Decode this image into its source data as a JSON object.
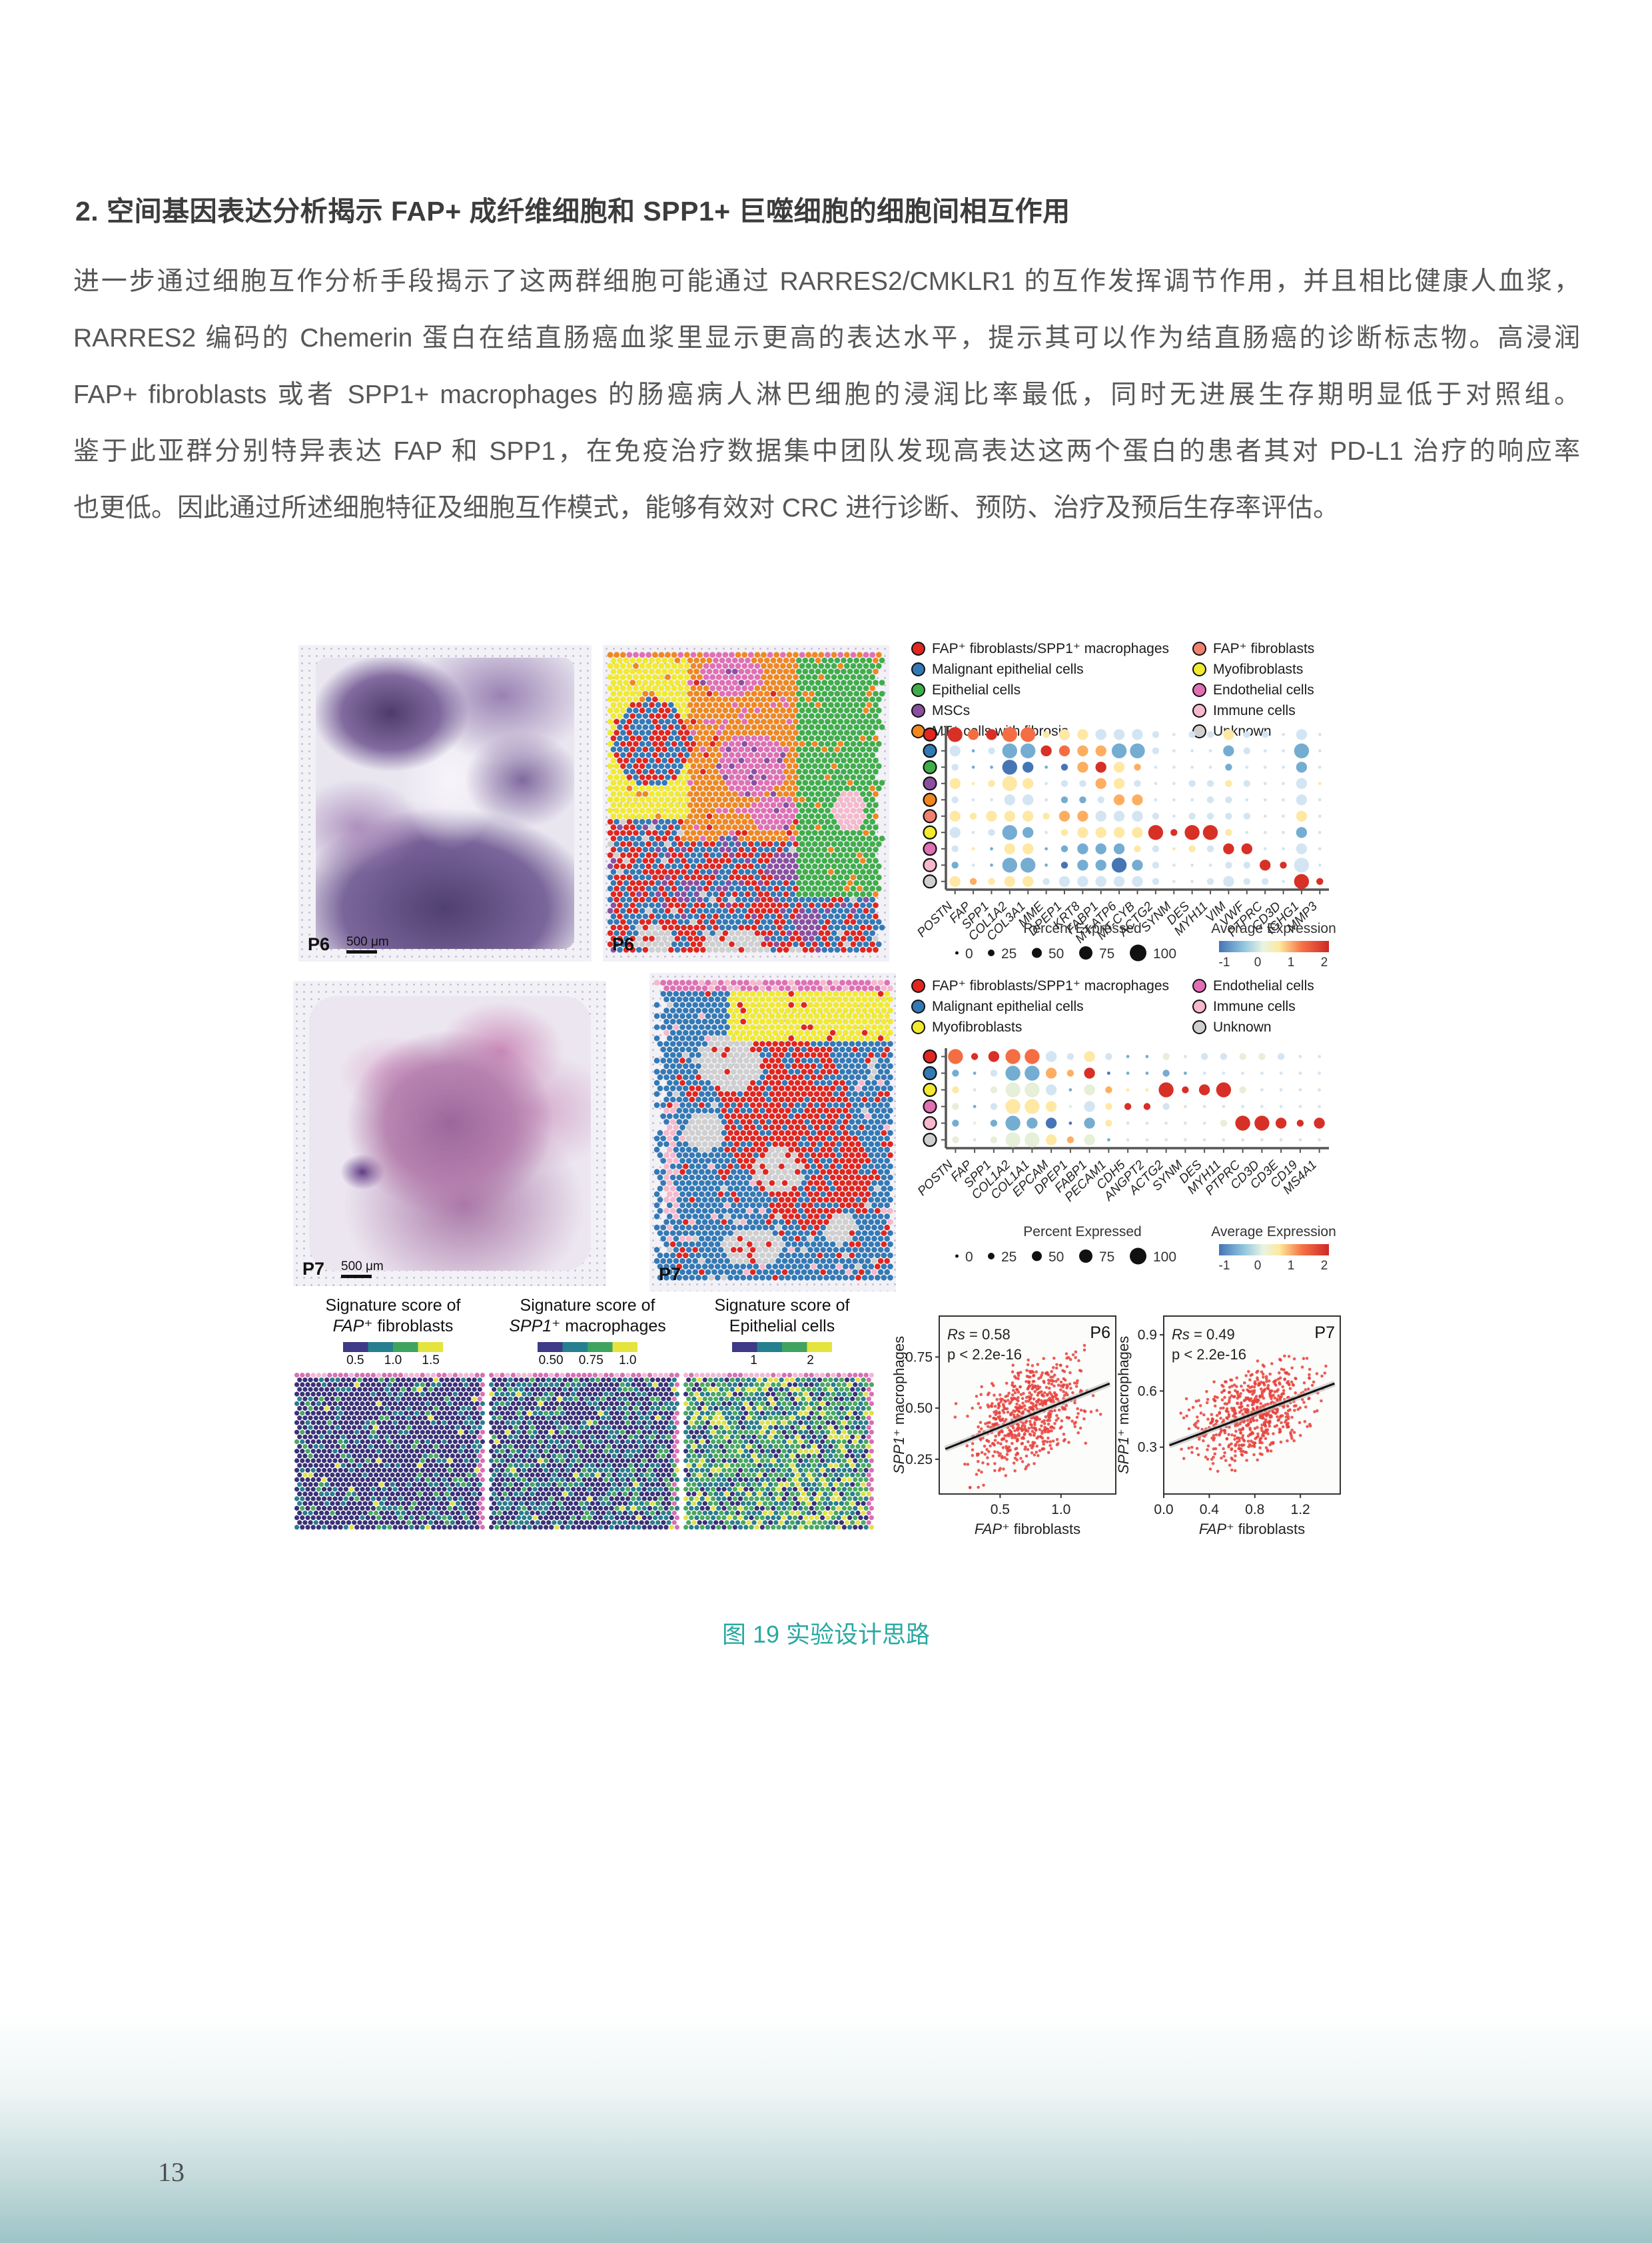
{
  "page": {
    "heading": "2. 空间基因表达分析揭示 FAP+ 成纤维细胞和 SPP1+ 巨噬细胞的细胞间相互作用",
    "paragraph_lines": [
      "进一步通过细胞互作分析手段揭示了这两群细胞可能通过 RARRES2/CMKLR1 的互作发挥调节作用，并且相比健康人血浆，",
      "RARRES2 编码的 Chemerin 蛋白在结直肠癌血浆里显示更高的表达水平，提示其可以作为结直肠癌的诊断标志物。高浸润",
      "FAP+ fibroblasts 或者 SPP1+ macrophages 的肠癌病人淋巴细胞的浸润比率最低，同时无进展生存期明显低于对照组。",
      "鉴于此亚群分别特异表达 FAP 和 SPP1，在免疫治疗数据集中团队发现高表达这两个蛋白的患者其对 PD-L1 治疗的响应率",
      "也更低。因此通过所述细胞特征及细胞互作模式，能够有效对 CRC 进行诊断、预防、治疗及预后生存率评估。"
    ],
    "caption": "图 19 实验设计思路",
    "caption_color": "#2aa8a2",
    "page_number": "13"
  },
  "figure": {
    "p6_label": "P6",
    "p7_label": "P7",
    "scale_label": "500 μm",
    "cell_colors": {
      "red": "#e0261f",
      "blue": "#3379b5",
      "green": "#3fae4a",
      "purple": "#8a4fa0",
      "orange": "#f0871f",
      "salmon": "#f08070",
      "yellow": "#f2ea2e",
      "magenta": "#e06fb4",
      "lightpink": "#f6b8ca",
      "gray": "#cfcfcf"
    },
    "expr_colors": {
      "R": "#d73027",
      "r": "#f46d43",
      "o": "#fdae61",
      "y": "#fee8a4",
      "e": "#e6efd8",
      "c": "#d3e5f2",
      "b": "#74add1",
      "B": "#4575b4"
    },
    "dot_sizes": {
      "1": 2.4,
      "2": 5.2,
      "3": 8.2,
      "4": 11.2
    },
    "legend_p6": {
      "left": [
        {
          "color": "red",
          "label": "FAP⁺ fibroblasts/SPP1⁺ macrophages"
        },
        {
          "color": "blue",
          "label": "Malignant epithelial cells"
        },
        {
          "color": "green",
          "label": "Epithelial cells"
        },
        {
          "color": "purple",
          "label": "MSCs"
        },
        {
          "color": "orange",
          "label": "MT⁺ cells with fibrosis"
        }
      ],
      "right": [
        {
          "color": "salmon",
          "label": "FAP⁺ fibroblasts"
        },
        {
          "color": "yellow",
          "label": "Myofibroblasts"
        },
        {
          "color": "magenta",
          "label": "Endothelial cells"
        },
        {
          "color": "lightpink",
          "label": "Immune cells"
        },
        {
          "color": "gray",
          "label": "Unknown"
        }
      ]
    },
    "legend_p7": {
      "left": [
        {
          "color": "red",
          "label": "FAP⁺ fibroblasts/SPP1⁺ macrophages"
        },
        {
          "color": "blue",
          "label": "Malignant epithelial cells"
        },
        {
          "color": "yellow",
          "label": "Myofibroblasts"
        }
      ],
      "right": [
        {
          "color": "magenta",
          "label": "Endothelial cells"
        },
        {
          "color": "lightpink",
          "label": "Immune cells"
        },
        {
          "color": "gray",
          "label": "Unknown"
        }
      ]
    },
    "dotplot_p6": {
      "genes": [
        "POSTN",
        "FAP",
        "SPP1",
        "COL1A2",
        "COL3A1",
        "MME",
        "DPEP1",
        "KRT8",
        "FABP1",
        "MT-ATP6",
        "MT-CYB",
        "ACTG2",
        "SYNM",
        "DES",
        "MYH11",
        "VIM",
        "VWF",
        "PTPRC",
        "CD3D",
        "IGHG1",
        "MMP3"
      ],
      "rows": [
        {
          "cell": "FAP+ fibroblasts/SPP1+ macrophages",
          "color": "red",
          "dots": "4R 3r 3R 4r 4r 2y 3y 3y 3c 3c 3c 2c 1c 2c 2c 3y 2c 2c 1c 3c 1c"
        },
        {
          "cell": "Malignant epithelial cells",
          "color": "blue",
          "dots": "3c 1b 2c 4b 4b 3R 3r 3o 3o 4b 4b 2c 1c 1c 1c 3b 2c 1c 1c 4b 1c"
        },
        {
          "cell": "Epithelial cells",
          "color": "green",
          "dots": "2c 1b 1b 4B 3B 1b 2B 3o 3R 3y 2o 1c 1c 1c 1c 2b 1c 1c 1c 3b 1c"
        },
        {
          "cell": "MSCs",
          "color": "purple",
          "dots": "3y 1y 2y 4y 3y 1c 2c 2c 3o 3y 2c 1c 1c 2c 2c 2y 2c 1c 1c 3c 1y"
        },
        {
          "cell": "MT+ cells with fibrosis",
          "color": "orange",
          "dots": "2c 1c 1c 3c 3c 1c 2b 2b 2c 3o 3o 1c 1c 1c 2c 2c 1c 1c 1c 3c 1c"
        },
        {
          "cell": "FAP+ fibroblasts",
          "color": "salmon",
          "dots": "3y 2y 3y 3y 3y 2y 3o 3o 3c 3c 3c 2c 1c 2c 2c 2c 2c 1c 1c 3y 1c"
        },
        {
          "cell": "Myofibroblasts",
          "color": "yellow",
          "dots": "3c 1c 2c 4b 3b 1c 2y 3y 3y 3y 3y 4R 2R 4R 4R 2y 1c 1c 1c 3b 1c"
        },
        {
          "cell": "Endothelial cells",
          "color": "magenta",
          "dots": "2c 1y 1b 3y 3y 1b 2b 3b 3b 3b 2y 2c 1y 2y 2c 3R 3R 1c 1c 3c 1c"
        },
        {
          "cell": "Immune cells",
          "color": "lightpink",
          "dots": "2b 1c 1b 4b 4b 1b 2B 3b 3b 4B 3b 2c 1c 1c 1c 2c 2c 3R 2R 4c 1c"
        },
        {
          "cell": "Unknown",
          "color": "gray",
          "dots": "3y 2o 2y 3y 3y 2c 3c 3c 3c 3c 3c 2c 1c 1c 2c 3c 2c 2c 1c 4R 2R"
        }
      ],
      "percent_legend": {
        "title": "Percent Expressed",
        "sizes": [
          "0",
          "25",
          "50",
          "75",
          "100"
        ]
      },
      "expression_legend": {
        "title": "Average Expression",
        "ticks": [
          "-1",
          "0",
          "1",
          "2"
        ]
      }
    },
    "dotplot_p7": {
      "genes": [
        "POSTN",
        "FAP",
        "SPP1",
        "COL1A2",
        "COL1A1",
        "EPCAM",
        "DPEP1",
        "FABP1",
        "PECAM1",
        "CDH5",
        "ANGPT2",
        "ACTG2",
        "SYNM",
        "DES",
        "MYH11",
        "PTPRC",
        "CD3D",
        "CD3E",
        "CD19",
        "MS4A1"
      ],
      "rows": [
        {
          "cell": "FAP+ fibroblasts/SPP1+ macrophages",
          "color": "red",
          "dots": "4r 2R 3R 4r 4r 3c 2c 3y 2c 1b 1b 2e 1c 2c 2c 2e 2e 2c 1c 1c"
        },
        {
          "cell": "Malignant epithelial cells",
          "color": "blue",
          "dots": "2b 1b 2c 4b 4b 3o 2o 3R 1B 1b 1b 2b 1b 1c 1c 1c 1c 1c 1c 1c"
        },
        {
          "cell": "Myofibroblasts",
          "color": "yellow",
          "dots": "2y 1c 2e 4e 4e 3c 1b 3e 2o 1y 1y 4R 2R 3R 4R 2e 1c 1c 1c 1c"
        },
        {
          "cell": "Endothelial cells",
          "color": "magenta",
          "dots": "2e 1b 2c 4y 4y 3y 1e 3c 2y 2R 2R 2c 1c 1c 1c 1c 1c 1c 1c 1c"
        },
        {
          "cell": "Immune cells",
          "color": "lightpink",
          "dots": "2b 1e 2b 4b 3b 3B 1B 3b 2y 1c 1c 1c 1c 1c 2e 4R 4R 3R 2R 3R"
        },
        {
          "cell": "Unknown",
          "color": "gray",
          "dots": "2e 1c 2e 4e 4e 3y 2o 3e 1b 1c 1c 1c 1c 1c 1c 1c 1c 1c 1c 1c"
        }
      ],
      "percent_legend": {
        "title": "Percent Expressed",
        "sizes": [
          "0",
          "25",
          "50",
          "75",
          "100"
        ]
      },
      "expression_legend": {
        "title": "Average Expression",
        "ticks": [
          "-1",
          "0",
          "1",
          "2"
        ]
      }
    },
    "signature_maps": [
      {
        "title1": "Signature score of",
        "title2_italic": "FAP⁺",
        "title2_rest": " fibroblasts",
        "ticks": [
          "0.5",
          "1.0",
          "1.5"
        ]
      },
      {
        "title1": "Signature score of",
        "title2_italic": "SPP1⁺",
        "title2_rest": " macrophages",
        "ticks": [
          "0.50",
          "0.75",
          "1.0"
        ]
      },
      {
        "title1": "Signature score of",
        "title2_italic": "",
        "title2_rest": "Epithelial cells",
        "ticks": [
          "1",
          "2"
        ]
      }
    ],
    "scatters": [
      {
        "panel": "P6",
        "rs": "Rs = 0.58",
        "p": "p < 2.2e-16",
        "xlabel_italic": "FAP⁺",
        "xlabel_rest": " fibroblasts",
        "ylabel_italic": "SPP1⁺",
        "ylabel_rest": " macrophages",
        "xticks": [
          {
            "v": 0.5,
            "t": "0.5"
          },
          {
            "v": 1.0,
            "t": "1.0"
          }
        ],
        "yticks": [
          {
            "v": 0.25,
            "t": "0.25"
          },
          {
            "v": 0.5,
            "t": "0.50"
          },
          {
            "v": 0.75,
            "t": "0.75"
          }
        ],
        "xlim": [
          0,
          1.45
        ],
        "ylim": [
          0.08,
          0.95
        ],
        "trend": {
          "x1": 0.05,
          "y1": 0.3,
          "x2": 1.4,
          "y2": 0.62
        }
      },
      {
        "panel": "P7",
        "rs": "Rs = 0.49",
        "p": "p < 2.2e-16",
        "xlabel_italic": "FAP⁺",
        "xlabel_rest": " fibroblasts",
        "ylabel_italic": "SPP1⁺",
        "ylabel_rest": " macrophages",
        "xticks": [
          {
            "v": 0.0,
            "t": "0.0"
          },
          {
            "v": 0.4,
            "t": "0.4"
          },
          {
            "v": 0.8,
            "t": "0.8"
          },
          {
            "v": 1.2,
            "t": "1.2"
          }
        ],
        "yticks": [
          {
            "v": 0.3,
            "t": "0.3"
          },
          {
            "v": 0.6,
            "t": "0.6"
          },
          {
            "v": 0.9,
            "t": "0.9"
          }
        ],
        "xlim": [
          0,
          1.55
        ],
        "ylim": [
          0.05,
          1.0
        ],
        "trend": {
          "x1": 0.05,
          "y1": 0.31,
          "x2": 1.5,
          "y2": 0.64
        }
      }
    ]
  },
  "chart_data": [
    {
      "type": "scatter",
      "title": "P6",
      "xlabel": "FAP+ fibroblasts",
      "ylabel": "SPP1+ macrophages",
      "annotations": [
        "Rs = 0.58",
        "p < 2.2e-16"
      ],
      "xlim": [
        0,
        1.45
      ],
      "ylim": [
        0.08,
        0.95
      ],
      "trend_line": [
        [
          0.05,
          0.3
        ],
        [
          1.4,
          0.62
        ]
      ]
    },
    {
      "type": "scatter",
      "title": "P7",
      "xlabel": "FAP+ fibroblasts",
      "ylabel": "SPP1+ macrophages",
      "annotations": [
        "Rs = 0.49",
        "p < 2.2e-16"
      ],
      "xlim": [
        0,
        1.55
      ],
      "ylim": [
        0.05,
        1.0
      ],
      "trend_line": [
        [
          0.05,
          0.31
        ],
        [
          1.5,
          0.64
        ]
      ]
    }
  ]
}
